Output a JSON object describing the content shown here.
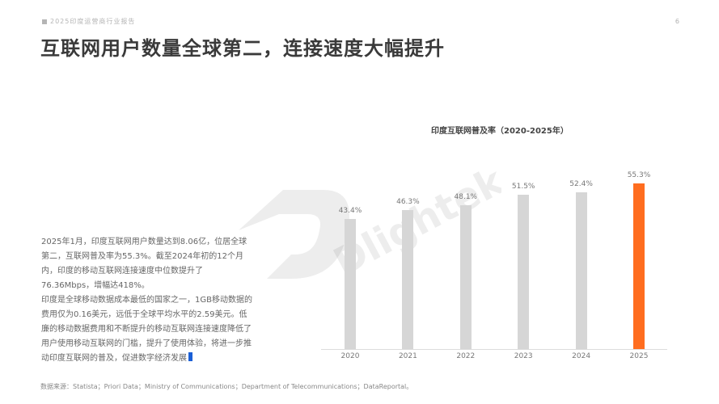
{
  "header": {
    "report_tag": "2025印度运营商行业报告",
    "page_number": "6",
    "title": "互联网用户数量全球第二，连接速度大幅提升"
  },
  "body": {
    "paragraphs": [
      "2025年1月，印度互联网用户数量达到8.06亿，位居全球第二，互联网普及率为55.3%。截至2024年初的12个月内，印度的移动互联网连接速度中位数提升了76.36Mbps，增幅达418%。",
      "印度是全球移动数据成本最低的国家之一，1GB移动数据的费用仅为0.16美元，远低于全球平均水平的2.59美元。低廉的移动数据费用和不断提升的移动互联网连接速度降低了用户使用移动互联网的门槛，提升了使用体验，将进一步推动印度互联网的普及，促进数字经济发展"
    ]
  },
  "watermark": "Dlightek",
  "footer": {
    "source": "数据来源：Statista；Priori Data；Ministry of Communications；Department of Telecommunications；DataReportal。"
  },
  "colors": {
    "highlight_bar": "#ff6d1f",
    "default_bar": "#d6d6d6",
    "cursor": "#1a5fd6"
  },
  "chart_data": {
    "type": "bar",
    "title": "印度互联网普及率（2020-2025年）",
    "categories": [
      "2020",
      "2021",
      "2022",
      "2023",
      "2024",
      "2025"
    ],
    "values": [
      43.4,
      46.3,
      48.1,
      51.5,
      52.4,
      55.3
    ],
    "value_labels": [
      "43.4%",
      "46.3%",
      "48.1%",
      "51.5%",
      "52.4%",
      "55.3%"
    ],
    "highlight_index": 5,
    "xlabel": "",
    "ylabel": "",
    "unit": "%",
    "ylim": [
      0,
      60
    ],
    "grid": false,
    "legend": "none"
  }
}
